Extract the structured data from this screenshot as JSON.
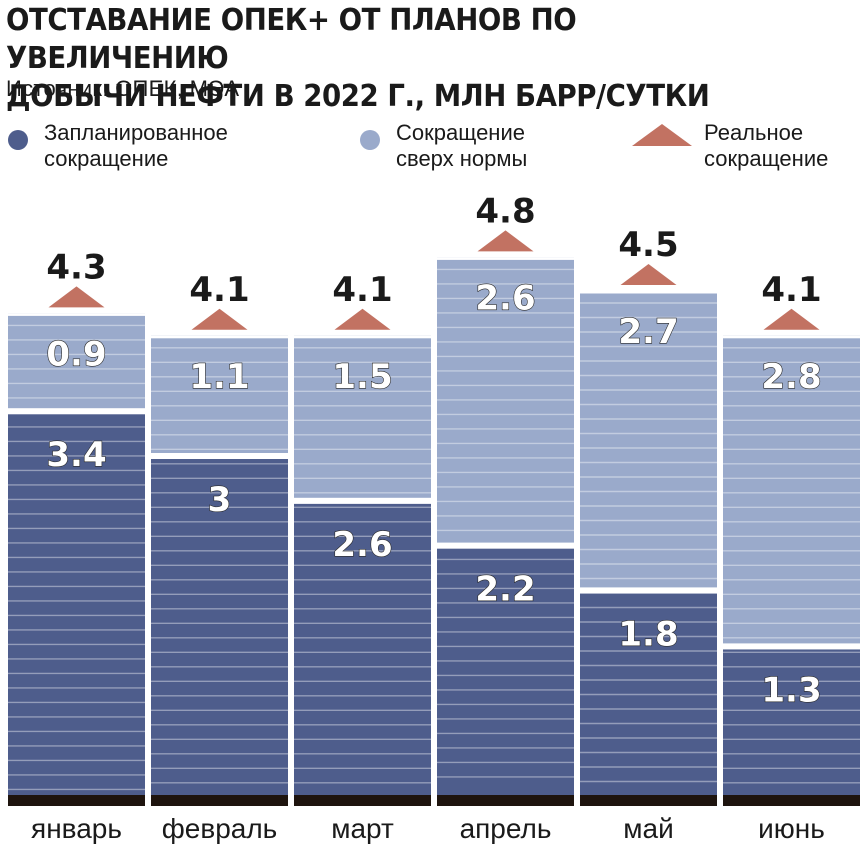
{
  "header": {
    "title_line1": "ОТСТАВАНИЕ ОПЕК+ ОТ ПЛАНОВ ПО УВЕЛИЧЕНИЮ",
    "title_line2": "ДОБЫЧИ НЕФТИ В 2022 Г., МЛН БАРР/СУТКИ",
    "source": "Источник: ОПЕК, МЭА"
  },
  "legend": {
    "planned": {
      "line1": "Запланированное",
      "line2": "сокращение",
      "color": "#4e5d8c"
    },
    "excess": {
      "line1": "Сокращение",
      "line2": "сверх нормы",
      "color": "#9aaacb"
    },
    "actual": {
      "line1": "Реальное",
      "line2": "сокращение",
      "color": "#c27262"
    }
  },
  "chart_data": {
    "type": "bar",
    "stacked": true,
    "categories": [
      "январь",
      "февраль",
      "март",
      "апрель",
      "май",
      "июнь"
    ],
    "series": [
      {
        "name": "Запланированное сокращение",
        "values": [
          3.4,
          3,
          2.6,
          2.2,
          1.8,
          1.3
        ],
        "labels": [
          "3.4",
          "3",
          "2.6",
          "2.2",
          "1.8",
          "1.3"
        ],
        "color": "#4e5d8c"
      },
      {
        "name": "Сокращение сверх нормы",
        "values": [
          0.9,
          1.1,
          1.5,
          2.6,
          2.7,
          2.8
        ],
        "labels": [
          "0.9",
          "1.1",
          "1.5",
          "2.6",
          "2.7",
          "2.8"
        ],
        "color": "#9aaacb"
      }
    ],
    "totals": [
      4.3,
      4.1,
      4.1,
      4.8,
      4.5,
      4.1
    ],
    "totals_labels": [
      "4.3",
      "4.1",
      "4.1",
      "4.8",
      "4.5",
      "4.1"
    ],
    "totals_name": "Реальное сокращение",
    "marker_color": "#c27262",
    "ylim": [
      0,
      6.2
    ],
    "grid": false
  }
}
